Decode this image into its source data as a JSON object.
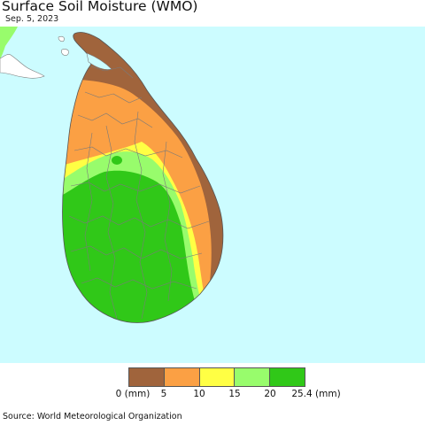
{
  "title": "Surface Soil Moisture (WMO)",
  "date": "Sep. 5, 2023",
  "colors": {
    "water": "#ccfcff",
    "land_bg": "#ffffff",
    "border": "#7a7a7a"
  },
  "legend": {
    "swatches": [
      {
        "color": "#a0643c"
      },
      {
        "color": "#fba044"
      },
      {
        "color": "#ffff44"
      },
      {
        "color": "#98fc6c"
      },
      {
        "color": "#30c818"
      }
    ],
    "tick_labels": [
      "0 (mm)",
      "5",
      "10",
      "15",
      "20",
      "25.4 (mm)"
    ]
  },
  "source": "Source: World Meteorological Organization"
}
